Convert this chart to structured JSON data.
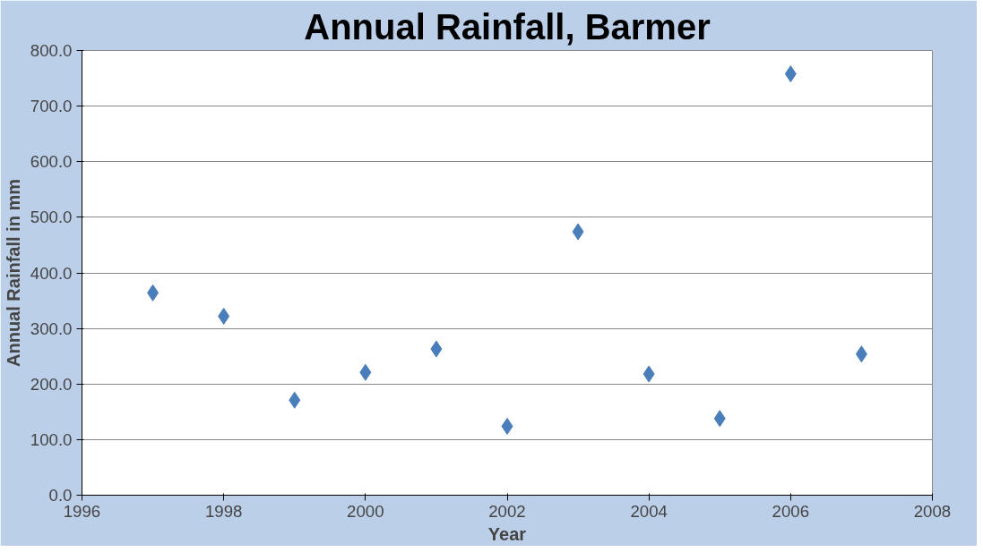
{
  "chart_data": {
    "type": "scatter",
    "title": "Annual Rainfall, Barmer",
    "xlabel": "Year",
    "ylabel": "Annual Rainfall in mm",
    "x": [
      1997,
      1998,
      1999,
      2000,
      2001,
      2002,
      2003,
      2004,
      2005,
      2006,
      2007
    ],
    "series": [
      {
        "color": "#4a7ebb",
        "values": [
          364,
          322,
          171,
          221,
          263,
          124,
          474,
          218,
          138,
          758,
          254
        ]
      }
    ],
    "marker": "diamond",
    "grid": "y",
    "xlim": [
      1996,
      2008
    ],
    "xticks": [
      1996,
      1998,
      2000,
      2002,
      2004,
      2006,
      2008
    ],
    "ylim": [
      0,
      800
    ],
    "yticks": [
      {
        "value": 0,
        "label": "0.0"
      },
      {
        "value": 100,
        "label": "100.0"
      },
      {
        "value": 200,
        "label": "200.0"
      },
      {
        "value": 300,
        "label": "300.0"
      },
      {
        "value": 400,
        "label": "400.0"
      },
      {
        "value": 500,
        "label": "500.0"
      },
      {
        "value": 600,
        "label": "600.0"
      },
      {
        "value": 700,
        "label": "700.0"
      },
      {
        "value": 800,
        "label": "800.0"
      }
    ]
  }
}
